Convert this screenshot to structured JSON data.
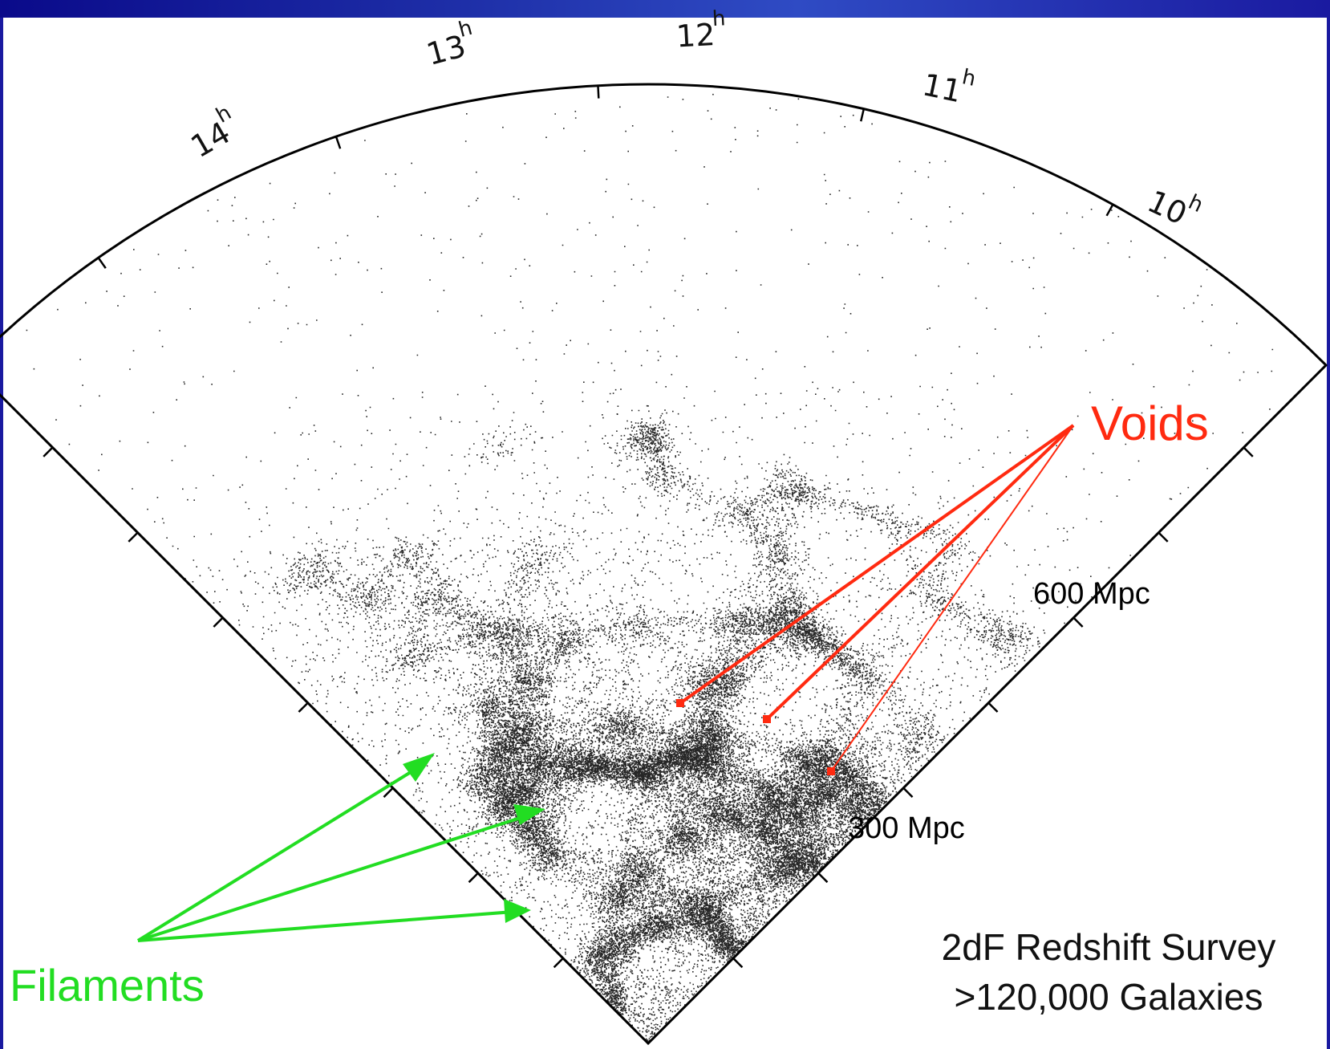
{
  "survey": {
    "title": "2dF Redshift Survey",
    "count": ">120,000 Galaxies"
  },
  "hour_labels": [
    {
      "hour": "14",
      "sup": "h"
    },
    {
      "hour": "13",
      "sup": "h"
    },
    {
      "hour": "12",
      "sup": "h"
    },
    {
      "hour": "11",
      "sup": "h"
    },
    {
      "hour": "10",
      "sup": "h"
    }
  ],
  "distance_labels": [
    "300 Mpc",
    "600 Mpc"
  ],
  "annotations": {
    "voids": "Voids",
    "filaments": "Filaments"
  },
  "colors": {
    "voids": "#ff2a10",
    "filaments": "#22dd22",
    "galaxies": "#000000",
    "frame": "#000000",
    "slide_border": "#1a1aa0"
  }
}
